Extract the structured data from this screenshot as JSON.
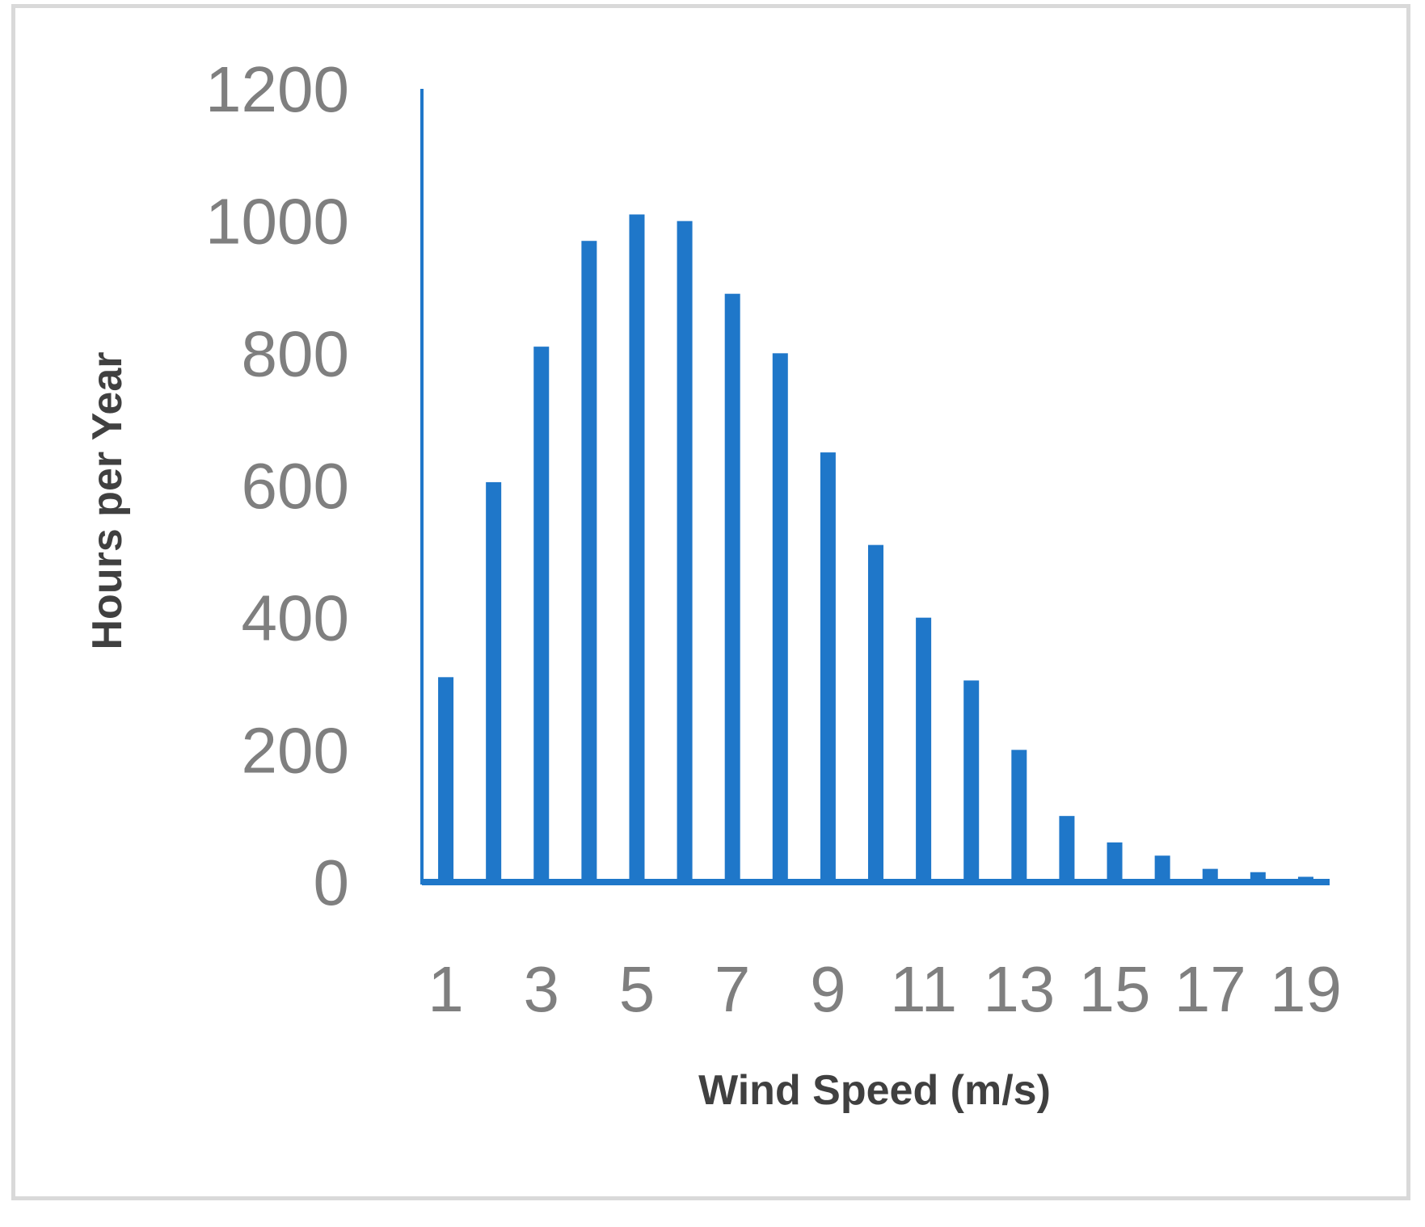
{
  "chart_data": {
    "type": "bar",
    "title": "",
    "xlabel": "Wind Speed (m/s)",
    "ylabel": "Hours per Year",
    "categories": [
      1,
      2,
      3,
      4,
      5,
      6,
      7,
      8,
      9,
      10,
      11,
      12,
      13,
      14,
      15,
      16,
      17,
      18,
      19
    ],
    "x_tick_labels": [
      "1",
      "",
      "3",
      "",
      "5",
      "",
      "7",
      "",
      "9",
      "",
      "11",
      "",
      "13",
      "",
      "15",
      "",
      "17",
      "",
      "19"
    ],
    "values": [
      310,
      605,
      810,
      970,
      1010,
      1000,
      890,
      800,
      650,
      510,
      400,
      305,
      200,
      100,
      60,
      40,
      20,
      15,
      8
    ],
    "y_ticks": [
      "0",
      "200",
      "400",
      "600",
      "800",
      "1000",
      "1200"
    ],
    "ylim": [
      0,
      1200
    ],
    "grid": false,
    "legend": "none",
    "bar_color": "#1f77c9",
    "axis_color": "#1f77c9",
    "tick_color": "#7f7f7f",
    "title_color": "#404040",
    "frame_color": "#d9d9d9"
  }
}
